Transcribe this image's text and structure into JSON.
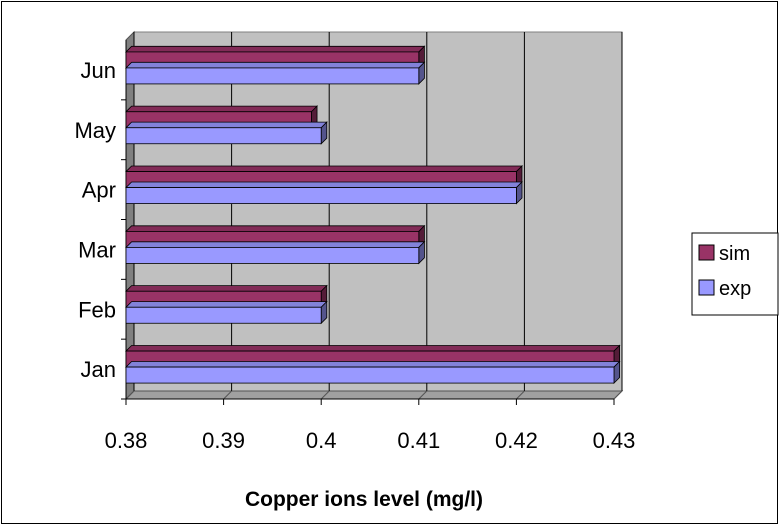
{
  "chart_data": {
    "type": "bar",
    "orientation": "horizontal",
    "categories": [
      "Jan",
      "Feb",
      "Mar",
      "Apr",
      "May",
      "Jun"
    ],
    "series": [
      {
        "name": "sim",
        "values": [
          0.43,
          0.4,
          0.41,
          0.42,
          0.399,
          0.41
        ],
        "color": "#993366"
      },
      {
        "name": "exp",
        "values": [
          0.43,
          0.4,
          0.41,
          0.42,
          0.4,
          0.41
        ],
        "color": "#9999FF"
      }
    ],
    "xlabel": "Copper ions level (mg/l)",
    "xlim": [
      0.38,
      0.43
    ],
    "xticks": [
      "0.38",
      "0.39",
      "0.4",
      "0.41",
      "0.42",
      "0.43"
    ],
    "grid": true,
    "legend_position": "right",
    "plot_background": "#C0C0C0"
  }
}
